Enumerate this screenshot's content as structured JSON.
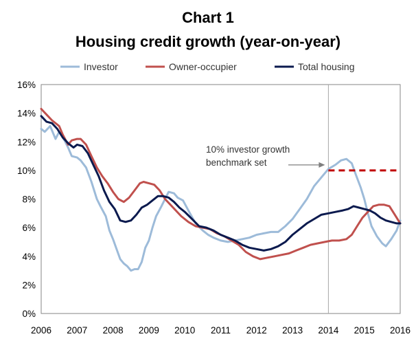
{
  "chart_data": {
    "type": "line",
    "title": [
      "Chart 1",
      "Housing credit growth (year-on-year)"
    ],
    "xlabel": "",
    "ylabel": "",
    "x_ticks": [
      "2006",
      "2007",
      "2008",
      "2009",
      "2010",
      "2011",
      "2012",
      "2013",
      "2014",
      "2015",
      "2016"
    ],
    "xlim": [
      2006,
      2016
    ],
    "y_ticks": [
      "0%",
      "2%",
      "4%",
      "6%",
      "8%",
      "10%",
      "12%",
      "14%",
      "16%"
    ],
    "ylim": [
      0,
      16
    ],
    "grid": false,
    "legend_position": "top",
    "series": [
      {
        "name": "Investor",
        "color": "#9dbbd9",
        "points": [
          [
            2006.0,
            12.9
          ],
          [
            2006.1,
            12.7
          ],
          [
            2006.25,
            13.1
          ],
          [
            2006.4,
            12.2
          ],
          [
            2006.5,
            12.7
          ],
          [
            2006.65,
            12.1
          ],
          [
            2006.75,
            11.6
          ],
          [
            2006.85,
            11.0
          ],
          [
            2007.0,
            10.9
          ],
          [
            2007.1,
            10.7
          ],
          [
            2007.25,
            10.2
          ],
          [
            2007.4,
            9.2
          ],
          [
            2007.55,
            8.0
          ],
          [
            2007.65,
            7.5
          ],
          [
            2007.8,
            6.8
          ],
          [
            2007.9,
            5.8
          ],
          [
            2008.0,
            5.2
          ],
          [
            2008.1,
            4.5
          ],
          [
            2008.2,
            3.8
          ],
          [
            2008.3,
            3.5
          ],
          [
            2008.4,
            3.3
          ],
          [
            2008.5,
            3.0
          ],
          [
            2008.6,
            3.1
          ],
          [
            2008.7,
            3.1
          ],
          [
            2008.8,
            3.6
          ],
          [
            2008.9,
            4.6
          ],
          [
            2009.0,
            5.1
          ],
          [
            2009.1,
            6.0
          ],
          [
            2009.2,
            6.8
          ],
          [
            2009.35,
            7.5
          ],
          [
            2009.45,
            8.0
          ],
          [
            2009.55,
            8.5
          ],
          [
            2009.7,
            8.4
          ],
          [
            2009.8,
            8.1
          ],
          [
            2009.95,
            7.9
          ],
          [
            2010.1,
            7.2
          ],
          [
            2010.3,
            6.3
          ],
          [
            2010.5,
            5.8
          ],
          [
            2010.65,
            5.5
          ],
          [
            2010.8,
            5.3
          ],
          [
            2011.0,
            5.1
          ],
          [
            2011.2,
            5.0
          ],
          [
            2011.4,
            5.1
          ],
          [
            2011.6,
            5.2
          ],
          [
            2011.8,
            5.3
          ],
          [
            2012.0,
            5.5
          ],
          [
            2012.2,
            5.6
          ],
          [
            2012.4,
            5.7
          ],
          [
            2012.6,
            5.7
          ],
          [
            2012.8,
            6.1
          ],
          [
            2013.0,
            6.6
          ],
          [
            2013.2,
            7.3
          ],
          [
            2013.4,
            8.0
          ],
          [
            2013.6,
            8.9
          ],
          [
            2013.8,
            9.5
          ],
          [
            2014.0,
            10.1
          ],
          [
            2014.2,
            10.4
          ],
          [
            2014.35,
            10.7
          ],
          [
            2014.5,
            10.8
          ],
          [
            2014.65,
            10.5
          ],
          [
            2014.75,
            9.8
          ],
          [
            2014.9,
            8.8
          ],
          [
            2015.0,
            8.0
          ],
          [
            2015.1,
            7.0
          ],
          [
            2015.2,
            6.1
          ],
          [
            2015.35,
            5.4
          ],
          [
            2015.5,
            4.9
          ],
          [
            2015.6,
            4.7
          ],
          [
            2015.75,
            5.2
          ],
          [
            2015.9,
            5.8
          ],
          [
            2016.0,
            6.5
          ]
        ]
      },
      {
        "name": "Owner-occupier",
        "color": "#c0504d",
        "points": [
          [
            2006.0,
            14.3
          ],
          [
            2006.15,
            13.9
          ],
          [
            2006.3,
            13.5
          ],
          [
            2006.5,
            13.1
          ],
          [
            2006.6,
            12.5
          ],
          [
            2006.75,
            11.8
          ],
          [
            2006.85,
            12.1
          ],
          [
            2007.0,
            12.2
          ],
          [
            2007.1,
            12.2
          ],
          [
            2007.25,
            11.8
          ],
          [
            2007.4,
            11.0
          ],
          [
            2007.55,
            10.2
          ],
          [
            2007.7,
            9.6
          ],
          [
            2007.85,
            9.1
          ],
          [
            2008.0,
            8.5
          ],
          [
            2008.15,
            8.0
          ],
          [
            2008.3,
            7.8
          ],
          [
            2008.45,
            8.1
          ],
          [
            2008.6,
            8.6
          ],
          [
            2008.75,
            9.1
          ],
          [
            2008.85,
            9.2
          ],
          [
            2009.0,
            9.1
          ],
          [
            2009.15,
            9.0
          ],
          [
            2009.3,
            8.6
          ],
          [
            2009.45,
            8.0
          ],
          [
            2009.6,
            7.6
          ],
          [
            2009.75,
            7.2
          ],
          [
            2009.9,
            6.8
          ],
          [
            2010.1,
            6.4
          ],
          [
            2010.3,
            6.1
          ],
          [
            2010.5,
            6.0
          ],
          [
            2010.7,
            5.9
          ],
          [
            2010.9,
            5.6
          ],
          [
            2011.1,
            5.4
          ],
          [
            2011.3,
            5.1
          ],
          [
            2011.5,
            4.8
          ],
          [
            2011.7,
            4.3
          ],
          [
            2011.9,
            4.0
          ],
          [
            2012.1,
            3.8
          ],
          [
            2012.3,
            3.9
          ],
          [
            2012.5,
            4.0
          ],
          [
            2012.7,
            4.1
          ],
          [
            2012.9,
            4.2
          ],
          [
            2013.1,
            4.4
          ],
          [
            2013.3,
            4.6
          ],
          [
            2013.5,
            4.8
          ],
          [
            2013.7,
            4.9
          ],
          [
            2013.9,
            5.0
          ],
          [
            2014.1,
            5.1
          ],
          [
            2014.3,
            5.1
          ],
          [
            2014.5,
            5.2
          ],
          [
            2014.65,
            5.5
          ],
          [
            2014.8,
            6.1
          ],
          [
            2014.95,
            6.7
          ],
          [
            2015.1,
            7.1
          ],
          [
            2015.25,
            7.5
          ],
          [
            2015.4,
            7.6
          ],
          [
            2015.55,
            7.6
          ],
          [
            2015.7,
            7.5
          ],
          [
            2015.85,
            6.9
          ],
          [
            2016.0,
            6.3
          ]
        ]
      },
      {
        "name": "Total housing",
        "color": "#0b1a4e",
        "points": [
          [
            2006.0,
            13.8
          ],
          [
            2006.15,
            13.4
          ],
          [
            2006.3,
            13.3
          ],
          [
            2006.45,
            12.9
          ],
          [
            2006.6,
            12.3
          ],
          [
            2006.75,
            11.9
          ],
          [
            2006.9,
            11.6
          ],
          [
            2007.0,
            11.8
          ],
          [
            2007.15,
            11.7
          ],
          [
            2007.3,
            11.2
          ],
          [
            2007.45,
            10.4
          ],
          [
            2007.6,
            9.6
          ],
          [
            2007.75,
            8.6
          ],
          [
            2007.9,
            7.8
          ],
          [
            2008.05,
            7.3
          ],
          [
            2008.2,
            6.5
          ],
          [
            2008.35,
            6.4
          ],
          [
            2008.5,
            6.5
          ],
          [
            2008.65,
            6.9
          ],
          [
            2008.8,
            7.4
          ],
          [
            2008.95,
            7.6
          ],
          [
            2009.1,
            7.9
          ],
          [
            2009.25,
            8.2
          ],
          [
            2009.4,
            8.2
          ],
          [
            2009.55,
            8.1
          ],
          [
            2009.7,
            7.8
          ],
          [
            2009.85,
            7.4
          ],
          [
            2010.0,
            7.1
          ],
          [
            2010.2,
            6.6
          ],
          [
            2010.4,
            6.1
          ],
          [
            2010.6,
            6.0
          ],
          [
            2010.8,
            5.8
          ],
          [
            2011.0,
            5.5
          ],
          [
            2011.2,
            5.3
          ],
          [
            2011.4,
            5.1
          ],
          [
            2011.6,
            4.8
          ],
          [
            2011.8,
            4.6
          ],
          [
            2012.0,
            4.5
          ],
          [
            2012.2,
            4.4
          ],
          [
            2012.4,
            4.5
          ],
          [
            2012.6,
            4.7
          ],
          [
            2012.8,
            5.0
          ],
          [
            2013.0,
            5.5
          ],
          [
            2013.2,
            5.9
          ],
          [
            2013.4,
            6.3
          ],
          [
            2013.6,
            6.6
          ],
          [
            2013.8,
            6.9
          ],
          [
            2014.0,
            7.0
          ],
          [
            2014.2,
            7.1
          ],
          [
            2014.4,
            7.2
          ],
          [
            2014.55,
            7.3
          ],
          [
            2014.7,
            7.5
          ],
          [
            2014.85,
            7.4
          ],
          [
            2015.0,
            7.3
          ],
          [
            2015.15,
            7.2
          ],
          [
            2015.3,
            7.0
          ],
          [
            2015.45,
            6.7
          ],
          [
            2015.6,
            6.5
          ],
          [
            2015.75,
            6.4
          ],
          [
            2015.9,
            6.3
          ],
          [
            2016.0,
            6.3
          ]
        ]
      }
    ],
    "reference_line": {
      "x": 2014.0,
      "color": "#a6a6a6"
    },
    "benchmark": {
      "x_start": 2014.0,
      "x_end": 2016.0,
      "y": 10.0,
      "color": "#c00000",
      "style": "dashed"
    },
    "annotation": {
      "lines": [
        "10% investor growth",
        "benchmark set"
      ],
      "arrow_target": [
        2014.0,
        10.0
      ]
    }
  }
}
